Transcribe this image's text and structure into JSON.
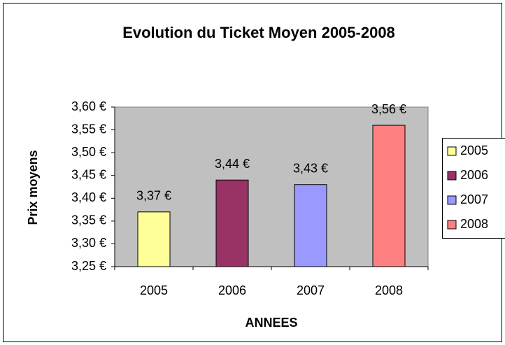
{
  "chart_data": {
    "type": "bar",
    "title": "Evolution du Ticket Moyen 2005-2008",
    "x_label": "ANNEES",
    "y_label": "Prix moyens",
    "categories": [
      "2005",
      "2006",
      "2007",
      "2008"
    ],
    "values": [
      3.37,
      3.44,
      3.43,
      3.56
    ],
    "value_labels": [
      "3,37 €",
      "3,44 €",
      "3,43 €",
      "3,56 €"
    ],
    "colors": [
      "#FFFF99",
      "#993366",
      "#9999FF",
      "#FF8080"
    ],
    "ylim": [
      3.25,
      3.6
    ],
    "yticks": [
      {
        "value": 3.25,
        "label": "3,25 €"
      },
      {
        "value": 3.3,
        "label": "3,30 €"
      },
      {
        "value": 3.35,
        "label": "3,35 €"
      },
      {
        "value": 3.4,
        "label": "3,40 €"
      },
      {
        "value": 3.45,
        "label": "3,45 €"
      },
      {
        "value": 3.5,
        "label": "3,50 €"
      },
      {
        "value": 3.55,
        "label": "3,55 €"
      },
      {
        "value": 3.6,
        "label": "3,60 €"
      }
    ],
    "legend": "right"
  }
}
